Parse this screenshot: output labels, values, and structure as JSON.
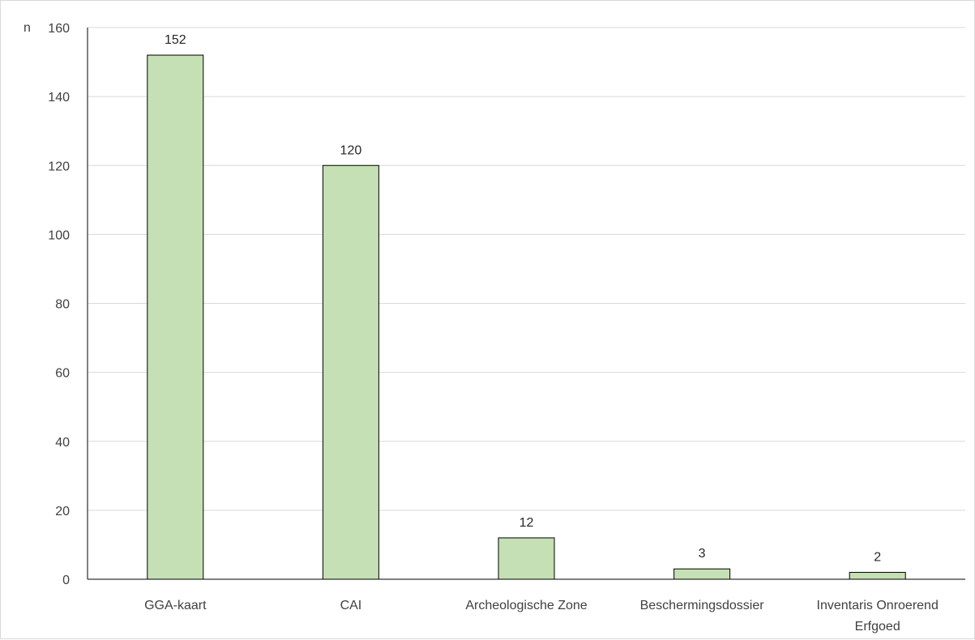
{
  "chart_data": {
    "type": "bar",
    "ylabel": "n",
    "ylim": [
      0,
      160
    ],
    "yticks": [
      0,
      20,
      40,
      60,
      80,
      100,
      120,
      140,
      160
    ],
    "grid": true,
    "categories": [
      [
        "GGA-kaart"
      ],
      [
        "CAI"
      ],
      [
        "Archeologische Zone"
      ],
      [
        "Beschermingsdossier"
      ],
      [
        "Inventaris Onroerend",
        "Erfgoed"
      ]
    ],
    "values": [
      152,
      120,
      12,
      3,
      2
    ],
    "data_labels": [
      "152",
      "120",
      "12",
      "3",
      "2"
    ],
    "colors": {
      "bar_fill": "#c5e0b4",
      "bar_stroke": "#000000",
      "gridline": "#d9d9d9",
      "axis": "#000000"
    }
  }
}
